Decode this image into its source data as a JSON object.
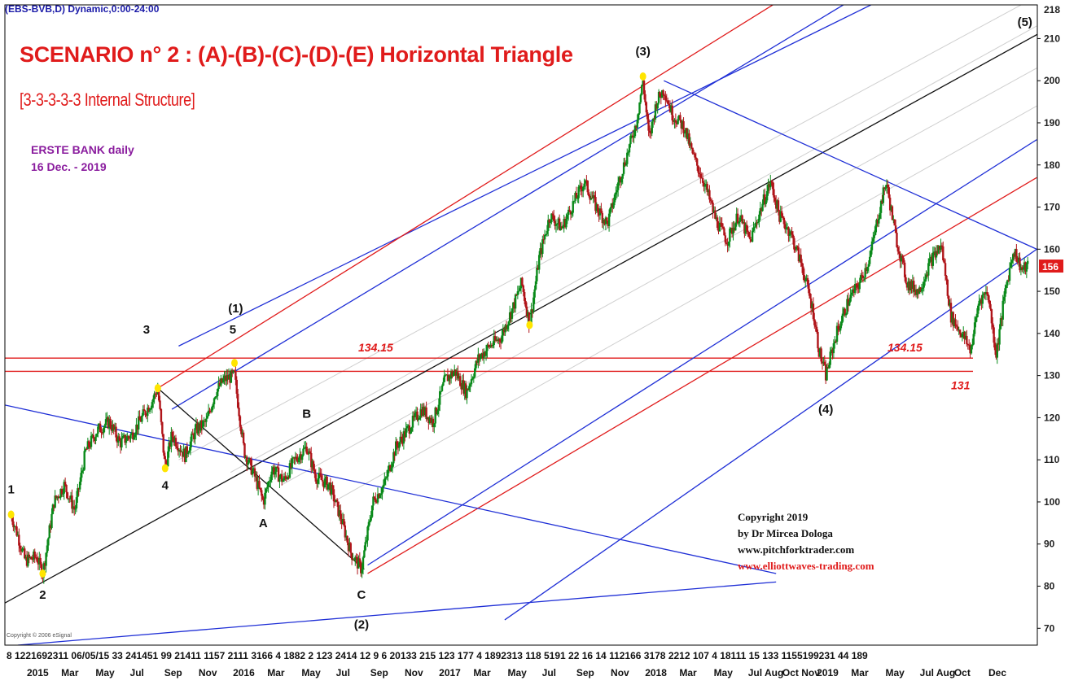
{
  "header": {
    "ticker": "(EBS-BVB,D) Dynamic,0:00-24:00"
  },
  "title": "SCENARIO n° 2 : (A)-(B)-(C)-(D)-(E) Horizontal Triangle",
  "subtitle": "[3-3-3-3-3 Internal Structure]",
  "instrument": {
    "name": "ERSTE BANK daily",
    "date": "16 Dec. -  2019"
  },
  "copyright": {
    "line1": "Copyright 2019",
    "line2": "by Dr Mircea Dologa",
    "line3": "www.pitchforktrader.com",
    "line4": "www.elliottwaves-trading.com"
  },
  "small_copyright": "Copyright © 2006 eSignal",
  "colors": {
    "up": "#0a8a1a",
    "down": "#b0151a",
    "blue_line": "#1f2fd6",
    "red_line": "#e01b1b",
    "black_line": "#111111",
    "price_tag": "#e01b1b"
  },
  "chart_data": {
    "type": "candlestick",
    "y_axis": {
      "side": "right",
      "ylim": [
        66,
        218
      ],
      "ticks": [
        70,
        80,
        90,
        100,
        110,
        120,
        130,
        140,
        150,
        160,
        170,
        180,
        190,
        200,
        210
      ],
      "top_label": "218"
    },
    "last_price": "156",
    "x_axis": {
      "day_row": "8  1221692311  06/05/15  33  241451 99  21411 1157 2111 3166  4 1882 2 123  2414 12 9  6 20133  215 123 177  4 1892313 118  5191 22 16 14 112166  3178 2212 107  4 18111 15 133  1155199231 44 189",
      "month_labels": [
        {
          "label": "2015",
          "date": "2015-01"
        },
        {
          "label": "Mar",
          "date": "2015-03"
        },
        {
          "label": "May",
          "date": "2015-05"
        },
        {
          "label": "Jul",
          "date": "2015-07"
        },
        {
          "label": "Sep",
          "date": "2015-09"
        },
        {
          "label": "Nov",
          "date": "2015-11"
        },
        {
          "label": "2016",
          "date": "2016-01"
        },
        {
          "label": "Mar",
          "date": "2016-03"
        },
        {
          "label": "May",
          "date": "2016-05"
        },
        {
          "label": "Jul",
          "date": "2016-07"
        },
        {
          "label": "Sep",
          "date": "2016-09"
        },
        {
          "label": "Nov",
          "date": "2016-11"
        },
        {
          "label": "2017",
          "date": "2017-01"
        },
        {
          "label": "Mar",
          "date": "2017-03"
        },
        {
          "label": "May",
          "date": "2017-05"
        },
        {
          "label": "Jul",
          "date": "2017-07"
        },
        {
          "label": "Sep",
          "date": "2017-09"
        },
        {
          "label": "Nov",
          "date": "2017-11"
        },
        {
          "label": "2018",
          "date": "2018-01"
        },
        {
          "label": "Mar",
          "date": "2018-03"
        },
        {
          "label": "May",
          "date": "2018-05"
        },
        {
          "label": "Jul Aug",
          "date": "2018-07"
        },
        {
          "label": "Oct Nov",
          "date": "2018-10"
        },
        {
          "label": "2019",
          "date": "2019-01"
        },
        {
          "label": "Mar",
          "date": "2019-03"
        },
        {
          "label": "May",
          "date": "2019-05"
        },
        {
          "label": "Jul Aug",
          "date": "2019-07"
        },
        {
          "label": "Oct",
          "date": "2019-10"
        },
        {
          "label": "Dec",
          "date": "2019-12"
        }
      ]
    },
    "price_path": [
      {
        "date": "2015-01-08",
        "price": 97
      },
      {
        "date": "2015-01-20",
        "price": 92
      },
      {
        "date": "2015-02-02",
        "price": 86
      },
      {
        "date": "2015-02-22",
        "price": 87
      },
      {
        "date": "2015-03-05",
        "price": 83
      },
      {
        "date": "2015-03-25",
        "price": 100
      },
      {
        "date": "2015-04-12",
        "price": 104
      },
      {
        "date": "2015-05-01",
        "price": 98
      },
      {
        "date": "2015-05-20",
        "price": 112
      },
      {
        "date": "2015-06-10",
        "price": 117
      },
      {
        "date": "2015-07-01",
        "price": 119
      },
      {
        "date": "2015-07-20",
        "price": 114
      },
      {
        "date": "2015-08-10",
        "price": 116
      },
      {
        "date": "2015-09-01",
        "price": 121
      },
      {
        "date": "2015-09-15",
        "price": 124
      },
      {
        "date": "2015-09-25",
        "price": 127
      },
      {
        "date": "2015-10-08",
        "price": 108
      },
      {
        "date": "2015-10-20",
        "price": 116
      },
      {
        "date": "2015-11-12",
        "price": 111
      },
      {
        "date": "2015-12-01",
        "price": 117
      },
      {
        "date": "2015-12-20",
        "price": 119
      },
      {
        "date": "2016-01-05",
        "price": 126
      },
      {
        "date": "2016-01-20",
        "price": 129
      },
      {
        "date": "2016-02-08",
        "price": 130
      },
      {
        "date": "2016-02-25",
        "price": 112
      },
      {
        "date": "2016-03-15",
        "price": 106
      },
      {
        "date": "2016-03-30",
        "price": 100
      },
      {
        "date": "2016-04-15",
        "price": 108
      },
      {
        "date": "2016-05-05",
        "price": 105
      },
      {
        "date": "2016-05-25",
        "price": 110
      },
      {
        "date": "2016-06-15",
        "price": 113
      },
      {
        "date": "2016-07-01",
        "price": 106
      },
      {
        "date": "2016-07-25",
        "price": 104
      },
      {
        "date": "2016-08-15",
        "price": 96
      },
      {
        "date": "2016-09-01",
        "price": 88
      },
      {
        "date": "2016-09-20",
        "price": 84
      },
      {
        "date": "2016-10-10",
        "price": 100
      },
      {
        "date": "2016-10-30",
        "price": 104
      },
      {
        "date": "2016-11-20",
        "price": 113
      },
      {
        "date": "2016-12-10",
        "price": 117
      },
      {
        "date": "2017-01-05",
        "price": 122
      },
      {
        "date": "2017-01-25",
        "price": 119
      },
      {
        "date": "2017-02-15",
        "price": 129
      },
      {
        "date": "2017-03-05",
        "price": 131
      },
      {
        "date": "2017-03-25",
        "price": 126
      },
      {
        "date": "2017-04-15",
        "price": 134
      },
      {
        "date": "2017-05-05",
        "price": 137
      },
      {
        "date": "2017-05-25",
        "price": 139
      },
      {
        "date": "2017-06-15",
        "price": 146
      },
      {
        "date": "2017-07-01",
        "price": 152
      },
      {
        "date": "2017-07-15",
        "price": 142
      },
      {
        "date": "2017-08-01",
        "price": 158
      },
      {
        "date": "2017-08-20",
        "price": 168
      },
      {
        "date": "2017-09-10",
        "price": 165
      },
      {
        "date": "2017-10-01",
        "price": 171
      },
      {
        "date": "2017-10-20",
        "price": 176
      },
      {
        "date": "2017-11-10",
        "price": 170
      },
      {
        "date": "2017-11-30",
        "price": 166
      },
      {
        "date": "2017-12-20",
        "price": 176
      },
      {
        "date": "2018-01-05",
        "price": 183
      },
      {
        "date": "2018-01-20",
        "price": 190
      },
      {
        "date": "2018-02-01",
        "price": 200
      },
      {
        "date": "2018-02-12",
        "price": 186
      },
      {
        "date": "2018-02-25",
        "price": 195
      },
      {
        "date": "2018-03-10",
        "price": 198
      },
      {
        "date": "2018-03-25",
        "price": 192
      },
      {
        "date": "2018-04-15",
        "price": 189
      },
      {
        "date": "2018-05-01",
        "price": 182
      },
      {
        "date": "2018-05-20",
        "price": 176
      },
      {
        "date": "2018-06-10",
        "price": 167
      },
      {
        "date": "2018-06-30",
        "price": 162
      },
      {
        "date": "2018-07-20",
        "price": 168
      },
      {
        "date": "2018-08-10",
        "price": 162
      },
      {
        "date": "2018-08-30",
        "price": 170
      },
      {
        "date": "2018-09-15",
        "price": 176
      },
      {
        "date": "2018-10-01",
        "price": 168
      },
      {
        "date": "2018-10-20",
        "price": 164
      },
      {
        "date": "2018-11-10",
        "price": 156
      },
      {
        "date": "2018-11-30",
        "price": 145
      },
      {
        "date": "2018-12-10",
        "price": 136
      },
      {
        "date": "2018-12-22",
        "price": 130
      },
      {
        "date": "2019-01-10",
        "price": 140
      },
      {
        "date": "2019-02-01",
        "price": 148
      },
      {
        "date": "2019-02-20",
        "price": 152
      },
      {
        "date": "2019-03-10",
        "price": 158
      },
      {
        "date": "2019-03-25",
        "price": 168
      },
      {
        "date": "2019-04-08",
        "price": 176
      },
      {
        "date": "2019-04-25",
        "price": 163
      },
      {
        "date": "2019-05-15",
        "price": 152
      },
      {
        "date": "2019-06-05",
        "price": 150
      },
      {
        "date": "2019-06-25",
        "price": 157
      },
      {
        "date": "2019-07-15",
        "price": 161
      },
      {
        "date": "2019-08-01",
        "price": 144
      },
      {
        "date": "2019-08-20",
        "price": 140
      },
      {
        "date": "2019-09-05",
        "price": 136
      },
      {
        "date": "2019-09-20",
        "price": 148
      },
      {
        "date": "2019-10-05",
        "price": 150
      },
      {
        "date": "2019-10-20",
        "price": 135
      },
      {
        "date": "2019-11-05",
        "price": 150
      },
      {
        "date": "2019-11-20",
        "price": 160
      },
      {
        "date": "2019-12-05",
        "price": 155
      },
      {
        "date": "2019-12-16",
        "price": 156
      }
    ],
    "horizontal_levels": [
      {
        "value": 134.15,
        "color": "#e01b1b",
        "labels": [
          "134.15",
          "134.15"
        ]
      },
      {
        "value": 131,
        "color": "#e01b1b",
        "labels": [
          "131"
        ]
      }
    ],
    "trendlines": [
      {
        "color": "#1f2fd6",
        "from": {
          "date": "2015-11-01",
          "price": 137
        },
        "to": {
          "date": "2019-09-10",
          "price": 230
        }
      },
      {
        "color": "#e01b1b",
        "from": {
          "date": "2015-09-25",
          "price": 127
        },
        "to": {
          "date": "2019-02-10",
          "price": 230
        }
      },
      {
        "color": "#1f2fd6",
        "from": {
          "date": "2015-10-20",
          "price": 122
        },
        "to": {
          "date": "2019-06-20",
          "price": 230
        }
      },
      {
        "color": "#111111",
        "from": {
          "date": "2014-12-28",
          "price": 76
        },
        "to": {
          "date": "2020-01-01",
          "price": 211
        }
      },
      {
        "color": "#1f2fd6",
        "from": {
          "date": "2016-10-01",
          "price": 85
        },
        "to": {
          "date": "2019-12-31",
          "price": 186
        }
      },
      {
        "color": "#e01b1b",
        "from": {
          "date": "2016-10-01",
          "price": 83
        },
        "to": {
          "date": "2019-12-31",
          "price": 177
        }
      },
      {
        "color": "#1f2fd6",
        "from": {
          "date": "2017-06-01",
          "price": 72
        },
        "to": {
          "date": "2019-12-31",
          "price": 160
        }
      },
      {
        "color": "#1f2fd6",
        "from": {
          "date": "2014-12-28",
          "price": 123
        },
        "to": {
          "date": "2018-09-25",
          "price": 83
        }
      },
      {
        "color": "#1f2fd6",
        "from": {
          "date": "2015-01-20",
          "price": 66
        },
        "to": {
          "date": "2018-09-25",
          "price": 81
        }
      },
      {
        "color": "#1f2fd6",
        "from": {
          "date": "2018-03-10",
          "price": 200
        },
        "to": {
          "date": "2019-12-31",
          "price": 160
        }
      },
      {
        "color": "#111111",
        "from": {
          "date": "2015-09-25",
          "price": 127
        },
        "to": {
          "date": "2016-09-25",
          "price": 84
        }
      }
    ],
    "guide_lines": [
      {
        "from": {
          "date": "2015-11-01",
          "price": 110
        },
        "to": {
          "date": "2019-12-31",
          "price": 220
        }
      },
      {
        "from": {
          "date": "2016-02-01",
          "price": 107
        },
        "to": {
          "date": "2019-12-31",
          "price": 213
        }
      },
      {
        "from": {
          "date": "2016-05-01",
          "price": 104
        },
        "to": {
          "date": "2019-12-31",
          "price": 203
        }
      },
      {
        "from": {
          "date": "2016-08-01",
          "price": 100
        },
        "to": {
          "date": "2019-12-31",
          "price": 194
        }
      }
    ],
    "wave_labels": [
      {
        "text": "1",
        "date": "2015-01-08",
        "price": 102
      },
      {
        "text": "2",
        "date": "2015-03-05",
        "price": 77
      },
      {
        "text": "3",
        "date": "2015-09-05",
        "price": 140
      },
      {
        "text": "4",
        "date": "2015-10-08",
        "price": 103
      },
      {
        "text": "5",
        "date": "2016-02-05",
        "price": 140
      },
      {
        "text": "(1)",
        "date": "2016-02-10",
        "price": 145
      },
      {
        "text": "A",
        "date": "2016-03-30",
        "price": 94
      },
      {
        "text": "B",
        "date": "2016-06-15",
        "price": 120
      },
      {
        "text": "C",
        "date": "2016-09-20",
        "price": 77
      },
      {
        "text": "(2)",
        "date": "2016-09-20",
        "price": 70
      },
      {
        "text": "(3)",
        "date": "2018-02-01",
        "price": 206
      },
      {
        "text": "(4)",
        "date": "2018-12-22",
        "price": 121
      },
      {
        "text": "(5)",
        "date": "2019-12-10",
        "price": 213
      }
    ],
    "marker_points": [
      {
        "date": "2015-01-08",
        "price": 97
      },
      {
        "date": "2015-03-05",
        "price": 83
      },
      {
        "date": "2015-09-25",
        "price": 127
      },
      {
        "date": "2015-10-08",
        "price": 108
      },
      {
        "date": "2016-02-08",
        "price": 133
      },
      {
        "date": "2017-07-15",
        "price": 142
      },
      {
        "date": "2018-02-01",
        "price": 201
      }
    ]
  }
}
